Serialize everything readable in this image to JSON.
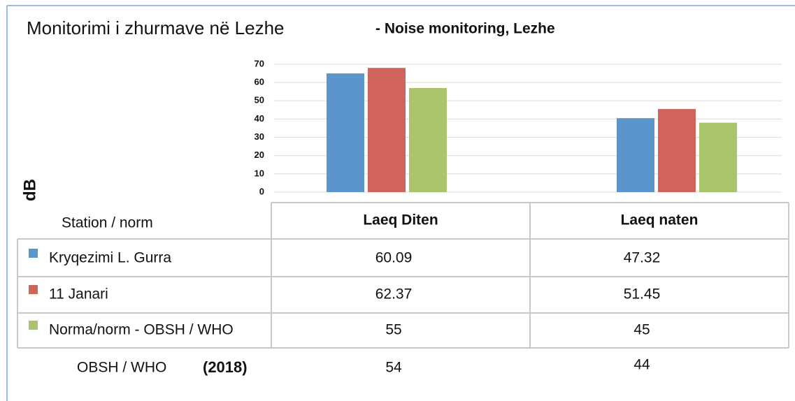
{
  "chart_data": {
    "type": "bar",
    "title": "Monitorimi i zhurmave në Lezhe",
    "subtitle": "- Noise monitoring, Lezhe",
    "ylabel": "dB",
    "categories": [
      "Laeq Diten",
      "Laeq naten"
    ],
    "series": [
      {
        "name": "Kryqezimi L. Gurra",
        "color": "#5b95cc",
        "values": [
          65,
          40.5
        ]
      },
      {
        "name": "11 Janari",
        "color": "#d0645c",
        "values": [
          68,
          45.5
        ]
      },
      {
        "name": "Norma/norm - OBSH / WHO",
        "color": "#a9c46a",
        "values": [
          57,
          38
        ]
      }
    ],
    "ylim": [
      0,
      70
    ],
    "yticks": [
      0,
      10,
      20,
      30,
      40,
      50,
      60,
      70
    ],
    "grid": true
  },
  "table": {
    "header": "Station / norm",
    "rows": [
      [
        60.09,
        47.32
      ],
      [
        62.37,
        51.45
      ],
      [
        55,
        45
      ]
    ],
    "footer": {
      "label": "OBSH / WHO",
      "year": "(2018)",
      "values": [
        54,
        44
      ]
    }
  }
}
